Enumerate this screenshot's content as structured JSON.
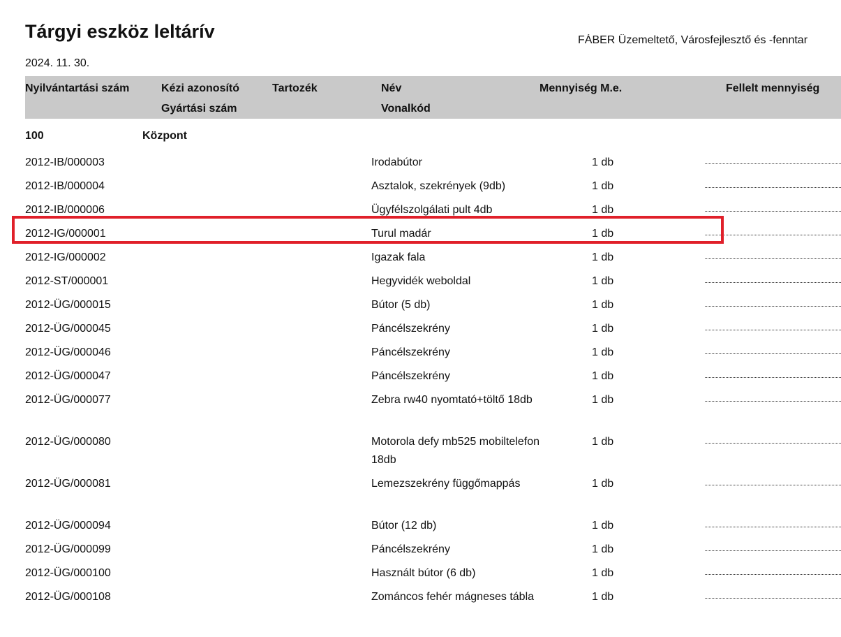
{
  "document": {
    "title": "Tárgyi eszköz leltárív",
    "company": "FÁBER Üzemeltető, Városfejlesztő és -fenntar",
    "date": "2024. 11. 30."
  },
  "header": {
    "nyilvantartasi": "Nyilvántartási szám",
    "kezi": "Kézi azonosító",
    "gyartasi": "Gyártási szám",
    "tartozek": "Tartozék",
    "nev": "Név",
    "vonalkod": "Vonalkód",
    "mennyiseg": "Mennyiség M.e.",
    "fellelt": "Fellelt mennyiség"
  },
  "group": {
    "code": "100",
    "name": "Központ"
  },
  "rows": [
    {
      "id": "2012-IB/000003",
      "name": "Irodabútor",
      "qty": "1 db"
    },
    {
      "id": "2012-IB/000004",
      "name": "Asztalok, szekrények (9db)",
      "qty": "1 db"
    },
    {
      "id": "2012-IB/000006",
      "name": "Ügyfélszolgálati pult 4db",
      "qty": "1 db"
    },
    {
      "id": "2012-IG/000001",
      "name": "Turul madár",
      "qty": "1 db"
    },
    {
      "id": "2012-IG/000002",
      "name": "Igazak fala",
      "qty": "1 db"
    },
    {
      "id": "2012-ST/000001",
      "name": "Hegyvidék weboldal",
      "qty": "1 db"
    },
    {
      "id": "2012-ÜG/000015",
      "name": "Bútor (5 db)",
      "qty": "1 db"
    },
    {
      "id": "2012-ÜG/000045",
      "name": "Páncélszekrény",
      "qty": "1 db"
    },
    {
      "id": "2012-ÜG/000046",
      "name": "Páncélszekrény",
      "qty": "1 db"
    },
    {
      "id": "2012-ÜG/000047",
      "name": "Páncélszekrény",
      "qty": "1 db"
    },
    {
      "id": "2012-ÜG/000077",
      "name": "Zebra rw40 nyomtató+töltő 18db",
      "qty": "1 db"
    },
    {
      "id": "2012-ÜG/000080",
      "name": "Motorola defy mb525 mobiltelefon 18db",
      "qty": "1 db"
    },
    {
      "id": "2012-ÜG/000081",
      "name": "Lemezszekrény függőmappás",
      "qty": "1 db"
    },
    {
      "id": "2012-ÜG/000094",
      "name": "Bútor (12 db)",
      "qty": "1 db"
    },
    {
      "id": "2012-ÜG/000099",
      "name": "Páncélszekrény",
      "qty": "1 db"
    },
    {
      "id": "2012-ÜG/000100",
      "name": "Használt bútor (6 db)",
      "qty": "1 db"
    },
    {
      "id": "2012-ÜG/000108",
      "name": "Zománcos fehér mágneses tábla",
      "qty": "1 db"
    }
  ],
  "highlight_color": "#e0202a"
}
